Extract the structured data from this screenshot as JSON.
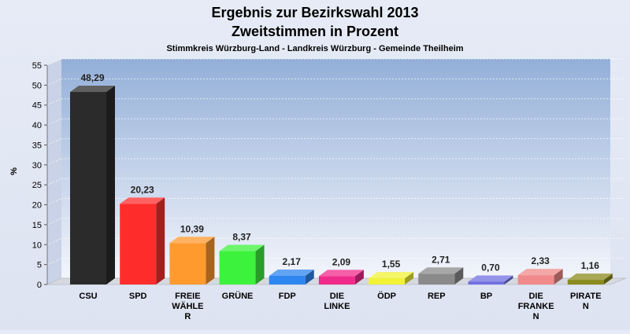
{
  "chart_data": {
    "type": "bar",
    "title": "Ergebnis zur Bezirkswahl 2013",
    "subtitle": "Zweitstimmen in Prozent",
    "caption": "Stimmkreis Würzburg-Land - Landkreis Würzburg - Gemeinde Theilheim",
    "ylabel": "%",
    "ylim": [
      0,
      55
    ],
    "yticks": [
      0,
      5,
      10,
      15,
      20,
      25,
      30,
      35,
      40,
      45,
      50,
      55
    ],
    "grid": true,
    "categories": [
      [
        "CSU"
      ],
      [
        "SPD"
      ],
      [
        "FREIE",
        "WÄHLE",
        "R"
      ],
      [
        "GRÜNE"
      ],
      [
        "FDP"
      ],
      [
        "DIE",
        "LINKE"
      ],
      [
        "ÖDP"
      ],
      [
        "REP"
      ],
      [
        "BP"
      ],
      [
        "DIE",
        "FRANKE",
        "N"
      ],
      [
        "PIRATE",
        "N"
      ]
    ],
    "values": [
      48.29,
      20.23,
      10.39,
      8.37,
      2.17,
      2.09,
      1.55,
      2.71,
      0.7,
      2.33,
      1.16
    ],
    "value_labels": [
      "48,29",
      "20,23",
      "10,39",
      "8,37",
      "2,17",
      "2,09",
      "1,55",
      "2,71",
      "0,70",
      "2,33",
      "1,16"
    ],
    "colors": [
      "#2b2b2b",
      "#ff2c2c",
      "#ff9a2e",
      "#3df23d",
      "#2e86f0",
      "#f02a8a",
      "#f2f236",
      "#8a8a8a",
      "#6f6fe0",
      "#f08a8a",
      "#8a8a1e"
    ]
  }
}
